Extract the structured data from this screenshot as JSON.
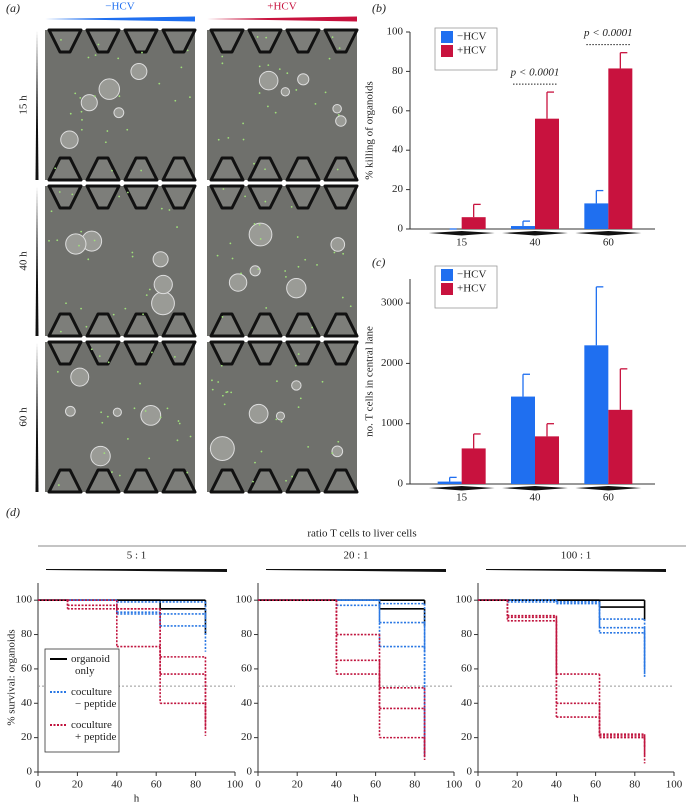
{
  "panel_a": {
    "label": "(a)",
    "columns": [
      "−HCV",
      "+HCV"
    ],
    "column_colors": [
      "#1f6ff0",
      "#c8123e"
    ],
    "rows": [
      "15 h",
      "40 h",
      "60 h"
    ]
  },
  "panel_d": {
    "label": "(d)",
    "title": "ratio T cells to liver cells"
  },
  "chart_data": [
    {
      "type": "bar",
      "label": "(b)",
      "ylabel": "% killing of organoids",
      "categories": [
        "15",
        "40",
        "60"
      ],
      "series": [
        {
          "name": "−HCV",
          "color": "#1f6ff0",
          "values": [
            0,
            1.5,
            13
          ],
          "errors": [
            0,
            2.5,
            6.5
          ]
        },
        {
          "name": "+HCV",
          "color": "#c8123e",
          "values": [
            6,
            56,
            81.5
          ],
          "errors": [
            6.5,
            13.5,
            8
          ]
        }
      ],
      "ylim": [
        0,
        100
      ],
      "yticks": [
        0,
        20,
        40,
        60,
        80,
        100
      ],
      "annotations": [
        "p < 0.0001",
        "p < 0.0001"
      ]
    },
    {
      "type": "bar",
      "label": "(c)",
      "ylabel": "no. T cells in central lane",
      "categories": [
        "15",
        "40",
        "60"
      ],
      "series": [
        {
          "name": "−HCV",
          "color": "#1f6ff0",
          "values": [
            40,
            1450,
            2300
          ],
          "errors": [
            70,
            370,
            970
          ]
        },
        {
          "name": "+HCV",
          "color": "#c8123e",
          "values": [
            590,
            790,
            1230
          ],
          "errors": [
            240,
            210,
            680
          ]
        }
      ],
      "ylim": [
        0,
        3400
      ],
      "yticks": [
        0,
        1000,
        2000,
        3000
      ]
    },
    {
      "type": "step",
      "subtitle": "5 : 1",
      "xlabel": "h",
      "ylabel": "% survival: organoids",
      "xlim": [
        0,
        100
      ],
      "xticks": [
        0,
        20,
        40,
        60,
        80,
        100
      ],
      "ylim": [
        0,
        110
      ],
      "yticks": [
        0,
        20,
        40,
        60,
        80,
        100
      ],
      "reference_line": 50,
      "series": [
        {
          "name": "organoid only",
          "color": "#000000",
          "dotted": false,
          "lines": [
            {
              "x": [
                0,
                85
              ],
              "values": [
                100,
                96
              ]
            },
            {
              "x": [
                0,
                62,
                85
              ],
              "values": [
                100,
                95,
                80
              ]
            }
          ]
        },
        {
          "name": "coculture − peptide",
          "color": "#2a78e4",
          "dotted": true,
          "lines": [
            {
              "x": [
                0,
                40,
                85
              ],
              "values": [
                100,
                99,
                90
              ]
            },
            {
              "x": [
                0,
                40,
                62,
                85
              ],
              "values": [
                100,
                93,
                92,
                85
              ]
            },
            {
              "x": [
                0,
                40,
                62,
                85
              ],
              "values": [
                100,
                92,
                85,
                70
              ]
            }
          ]
        },
        {
          "name": "coculture + peptide",
          "color": "#c0143e",
          "dotted": true,
          "lines": [
            {
              "x": [
                0,
                15,
                40,
                62,
                85
              ],
              "values": [
                100,
                100,
                95,
                67,
                30
              ]
            },
            {
              "x": [
                0,
                15,
                40,
                62,
                85
              ],
              "values": [
                100,
                97,
                95,
                57,
                25
              ]
            },
            {
              "x": [
                0,
                15,
                40,
                62,
                85
              ],
              "values": [
                100,
                95,
                73,
                40,
                21
              ]
            }
          ]
        }
      ]
    },
    {
      "type": "step",
      "subtitle": "20 : 1",
      "xlabel": "h",
      "xlim": [
        0,
        100
      ],
      "xticks": [
        0,
        20,
        40,
        60,
        80,
        100
      ],
      "ylim": [
        0,
        110
      ],
      "yticks": [
        0,
        20,
        40,
        60,
        80,
        100
      ],
      "reference_line": 50,
      "series": [
        {
          "color": "#000000",
          "dotted": false,
          "lines": [
            {
              "x": [
                0,
                85
              ],
              "values": [
                100,
                97
              ]
            },
            {
              "x": [
                0,
                62,
                85
              ],
              "values": [
                100,
                95,
                85
              ]
            }
          ]
        },
        {
          "color": "#2a78e4",
          "dotted": true,
          "lines": [
            {
              "x": [
                0,
                40,
                62,
                85
              ],
              "values": [
                100,
                100,
                98,
                70
              ]
            },
            {
              "x": [
                0,
                62,
                85
              ],
              "values": [
                100,
                87,
                10
              ]
            },
            {
              "x": [
                0,
                40,
                62,
                85
              ],
              "values": [
                100,
                97,
                73,
                8
              ]
            }
          ]
        },
        {
          "color": "#c0143e",
          "dotted": true,
          "lines": [
            {
              "x": [
                0,
                40,
                62,
                85
              ],
              "values": [
                100,
                80,
                49,
                12
              ]
            },
            {
              "x": [
                0,
                40,
                62,
                85
              ],
              "values": [
                100,
                65,
                37,
                9
              ]
            },
            {
              "x": [
                0,
                40,
                62,
                85
              ],
              "values": [
                100,
                57,
                20,
                7
              ]
            }
          ]
        }
      ]
    },
    {
      "type": "step",
      "subtitle": "100 : 1",
      "xlabel": "h",
      "xlim": [
        0,
        100
      ],
      "xticks": [
        0,
        20,
        40,
        60,
        80,
        100
      ],
      "ylim": [
        0,
        110
      ],
      "yticks": [
        0,
        20,
        40,
        60,
        80,
        100
      ],
      "reference_line": 50,
      "series": [
        {
          "color": "#000000",
          "dotted": false,
          "lines": [
            {
              "x": [
                0,
                62,
                85
              ],
              "values": [
                100,
                100,
                96
              ]
            },
            {
              "x": [
                0,
                62,
                85
              ],
              "values": [
                100,
                96,
                88
              ]
            }
          ]
        },
        {
          "color": "#2a78e4",
          "dotted": true,
          "lines": [
            {
              "x": [
                0,
                40,
                62,
                85
              ],
              "values": [
                100,
                99,
                89,
                60
              ]
            },
            {
              "x": [
                0,
                40,
                62,
                85
              ],
              "values": [
                100,
                98,
                84,
                57
              ]
            },
            {
              "x": [
                0,
                15,
                62,
                85
              ],
              "values": [
                100,
                99,
                81,
                55
              ]
            }
          ]
        },
        {
          "color": "#c0143e",
          "dotted": true,
          "lines": [
            {
              "x": [
                0,
                15,
                40,
                62,
                85
              ],
              "values": [
                100,
                91,
                57,
                22,
                14
              ]
            },
            {
              "x": [
                0,
                15,
                40,
                62,
                85
              ],
              "values": [
                100,
                90,
                40,
                21,
                9
              ]
            },
            {
              "x": [
                0,
                15,
                40,
                62,
                85
              ],
              "values": [
                100,
                88,
                32,
                20,
                5
              ]
            }
          ]
        }
      ]
    }
  ]
}
